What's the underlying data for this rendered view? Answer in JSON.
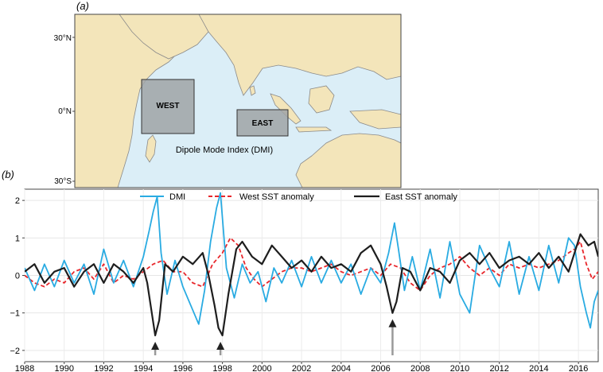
{
  "panel_a": {
    "label": "(a)",
    "lat_labels": [
      "30°N",
      "0°N",
      "30°S"
    ],
    "region_west": "WEST",
    "region_east": "EAST",
    "caption": "Dipole Mode Index (DMI)",
    "colors": {
      "ocean": "#dbeef7",
      "land": "#f3e5ba",
      "box": "#9fa3a6",
      "coast": "#7d7d7d"
    }
  },
  "panel_b": {
    "label": "(b)"
  },
  "chart_data": {
    "type": "line",
    "x_tick_labels": [
      "1988",
      "1990",
      "1992",
      "1994",
      "1996",
      "1998",
      "2000",
      "2002",
      "2004",
      "2006",
      "2008",
      "2010",
      "2012",
      "2014",
      "2016"
    ],
    "y_tick_labels": [
      "2",
      "1",
      "0",
      "−1",
      "−2"
    ],
    "xlim": [
      1988,
      2017
    ],
    "ylim": [
      -2.3,
      2.3
    ],
    "grid": true,
    "legend_position": "top",
    "series": [
      {
        "name": "DMI",
        "color": "#29abe2",
        "dash": "solid",
        "points": [
          [
            1988.0,
            0.2
          ],
          [
            1988.5,
            -0.4
          ],
          [
            1989.0,
            0.3
          ],
          [
            1989.5,
            -0.3
          ],
          [
            1990.0,
            0.4
          ],
          [
            1990.5,
            -0.2
          ],
          [
            1991.0,
            0.3
          ],
          [
            1991.5,
            -0.5
          ],
          [
            1992.0,
            0.7
          ],
          [
            1992.5,
            -0.2
          ],
          [
            1993.0,
            0.4
          ],
          [
            1993.5,
            -0.3
          ],
          [
            1994.0,
            0.5
          ],
          [
            1994.3,
            1.2
          ],
          [
            1994.5,
            1.7
          ],
          [
            1994.7,
            2.1
          ],
          [
            1994.9,
            0.6
          ],
          [
            1995.2,
            -0.5
          ],
          [
            1995.6,
            0.4
          ],
          [
            1996.0,
            -0.3
          ],
          [
            1996.4,
            -0.8
          ],
          [
            1996.8,
            -1.3
          ],
          [
            1997.1,
            -0.4
          ],
          [
            1997.4,
            0.9
          ],
          [
            1997.7,
            1.8
          ],
          [
            1997.9,
            2.2
          ],
          [
            1998.2,
            0.2
          ],
          [
            1998.6,
            -0.6
          ],
          [
            1999.0,
            0.3
          ],
          [
            1999.4,
            -0.2
          ],
          [
            1999.8,
            0.1
          ],
          [
            2000.2,
            -0.7
          ],
          [
            2000.6,
            0.2
          ],
          [
            2001.0,
            -0.2
          ],
          [
            2001.5,
            0.4
          ],
          [
            2002.0,
            -0.3
          ],
          [
            2002.5,
            0.5
          ],
          [
            2003.0,
            -0.2
          ],
          [
            2003.5,
            0.4
          ],
          [
            2004.0,
            -0.2
          ],
          [
            2004.5,
            0.3
          ],
          [
            2005.0,
            -0.5
          ],
          [
            2005.5,
            0.2
          ],
          [
            2006.0,
            -0.2
          ],
          [
            2006.4,
            0.6
          ],
          [
            2006.7,
            1.4
          ],
          [
            2006.9,
            0.7
          ],
          [
            2007.2,
            -0.4
          ],
          [
            2007.6,
            0.5
          ],
          [
            2008.0,
            -0.4
          ],
          [
            2008.5,
            0.7
          ],
          [
            2009.0,
            -0.6
          ],
          [
            2009.5,
            0.9
          ],
          [
            2010.0,
            -0.5
          ],
          [
            2010.5,
            -1.0
          ],
          [
            2011.0,
            0.8
          ],
          [
            2011.5,
            0.2
          ],
          [
            2012.0,
            -0.3
          ],
          [
            2012.5,
            0.9
          ],
          [
            2013.0,
            -0.5
          ],
          [
            2013.5,
            0.5
          ],
          [
            2014.0,
            -0.4
          ],
          [
            2014.5,
            0.8
          ],
          [
            2015.0,
            -0.2
          ],
          [
            2015.5,
            1.0
          ],
          [
            2015.8,
            0.8
          ],
          [
            2016.1,
            -0.3
          ],
          [
            2016.4,
            -1.0
          ],
          [
            2016.6,
            -1.4
          ],
          [
            2016.8,
            -0.7
          ],
          [
            2017.0,
            -0.4
          ]
        ]
      },
      {
        "name": "West SST anomaly",
        "color": "#e8262b",
        "dash": "dashed",
        "points": [
          [
            1988.0,
            0.0
          ],
          [
            1988.5,
            -0.2
          ],
          [
            1989.0,
            -0.3
          ],
          [
            1989.5,
            -0.1
          ],
          [
            1990.0,
            -0.2
          ],
          [
            1990.5,
            0.1
          ],
          [
            1991.0,
            0.2
          ],
          [
            1991.5,
            -0.1
          ],
          [
            1992.0,
            0.3
          ],
          [
            1992.5,
            -0.2
          ],
          [
            1993.0,
            0.0
          ],
          [
            1993.5,
            -0.1
          ],
          [
            1994.0,
            0.1
          ],
          [
            1994.5,
            0.3
          ],
          [
            1995.0,
            0.4
          ],
          [
            1995.5,
            0.1
          ],
          [
            1996.0,
            0.1
          ],
          [
            1996.5,
            -0.2
          ],
          [
            1997.0,
            -0.3
          ],
          [
            1997.5,
            0.3
          ],
          [
            1998.0,
            0.6
          ],
          [
            1998.4,
            1.0
          ],
          [
            1998.8,
            0.8
          ],
          [
            1999.2,
            0.2
          ],
          [
            1999.6,
            -0.1
          ],
          [
            2000.0,
            -0.3
          ],
          [
            2000.5,
            -0.1
          ],
          [
            2001.0,
            0.1
          ],
          [
            2001.5,
            0.2
          ],
          [
            2002.0,
            0.2
          ],
          [
            2002.5,
            0.1
          ],
          [
            2003.0,
            0.2
          ],
          [
            2003.5,
            0.3
          ],
          [
            2004.0,
            0.1
          ],
          [
            2004.5,
            0.0
          ],
          [
            2005.0,
            0.1
          ],
          [
            2005.5,
            0.2
          ],
          [
            2006.0,
            0.0
          ],
          [
            2006.5,
            0.3
          ],
          [
            2007.0,
            0.2
          ],
          [
            2007.5,
            -0.2
          ],
          [
            2008.0,
            -0.4
          ],
          [
            2008.5,
            0.0
          ],
          [
            2009.0,
            0.2
          ],
          [
            2009.5,
            0.3
          ],
          [
            2010.0,
            0.5
          ],
          [
            2010.5,
            0.2
          ],
          [
            2011.0,
            0.0
          ],
          [
            2011.5,
            0.2
          ],
          [
            2012.0,
            0.0
          ],
          [
            2012.5,
            0.3
          ],
          [
            2013.0,
            0.2
          ],
          [
            2013.5,
            0.3
          ],
          [
            2014.0,
            0.2
          ],
          [
            2014.5,
            0.3
          ],
          [
            2015.0,
            0.4
          ],
          [
            2015.5,
            0.6
          ],
          [
            2015.8,
            0.7
          ],
          [
            2016.1,
            0.9
          ],
          [
            2016.4,
            0.3
          ],
          [
            2016.7,
            -0.1
          ],
          [
            2017.0,
            0.1
          ]
        ]
      },
      {
        "name": "East SST anomaly",
        "color": "#1e1e1e",
        "dash": "solid",
        "points": [
          [
            1988.0,
            0.1
          ],
          [
            1988.5,
            0.3
          ],
          [
            1989.0,
            -0.2
          ],
          [
            1989.5,
            0.1
          ],
          [
            1990.0,
            0.2
          ],
          [
            1990.5,
            -0.3
          ],
          [
            1991.0,
            0.1
          ],
          [
            1991.5,
            0.3
          ],
          [
            1992.0,
            -0.2
          ],
          [
            1992.5,
            0.3
          ],
          [
            1993.0,
            0.1
          ],
          [
            1993.5,
            -0.2
          ],
          [
            1994.0,
            0.2
          ],
          [
            1994.2,
            -0.2
          ],
          [
            1994.4,
            -0.9
          ],
          [
            1994.6,
            -1.6
          ],
          [
            1994.8,
            -1.2
          ],
          [
            1995.1,
            0.3
          ],
          [
            1995.5,
            0.1
          ],
          [
            1996.0,
            0.5
          ],
          [
            1996.5,
            0.3
          ],
          [
            1997.0,
            0.6
          ],
          [
            1997.3,
            0.0
          ],
          [
            1997.6,
            -0.8
          ],
          [
            1997.8,
            -1.4
          ],
          [
            1998.0,
            -1.6
          ],
          [
            1998.3,
            -0.5
          ],
          [
            1998.7,
            0.7
          ],
          [
            1999.0,
            0.9
          ],
          [
            1999.5,
            0.5
          ],
          [
            2000.0,
            0.3
          ],
          [
            2000.5,
            0.8
          ],
          [
            2001.0,
            0.5
          ],
          [
            2001.5,
            0.2
          ],
          [
            2002.0,
            0.4
          ],
          [
            2002.5,
            0.1
          ],
          [
            2003.0,
            0.5
          ],
          [
            2003.5,
            0.2
          ],
          [
            2004.0,
            0.3
          ],
          [
            2004.5,
            0.1
          ],
          [
            2005.0,
            0.6
          ],
          [
            2005.5,
            0.8
          ],
          [
            2006.0,
            0.3
          ],
          [
            2006.3,
            -0.3
          ],
          [
            2006.6,
            -1.0
          ],
          [
            2006.8,
            -0.7
          ],
          [
            2007.1,
            0.2
          ],
          [
            2007.5,
            0.1
          ],
          [
            2008.0,
            -0.4
          ],
          [
            2008.5,
            0.2
          ],
          [
            2009.0,
            0.1
          ],
          [
            2009.5,
            -0.2
          ],
          [
            2010.0,
            0.4
          ],
          [
            2010.5,
            0.6
          ],
          [
            2011.0,
            0.3
          ],
          [
            2011.5,
            0.6
          ],
          [
            2012.0,
            0.2
          ],
          [
            2012.5,
            0.4
          ],
          [
            2013.0,
            0.5
          ],
          [
            2013.5,
            0.3
          ],
          [
            2014.0,
            0.6
          ],
          [
            2014.5,
            0.2
          ],
          [
            2015.0,
            0.5
          ],
          [
            2015.5,
            0.1
          ],
          [
            2015.8,
            0.6
          ],
          [
            2016.1,
            1.1
          ],
          [
            2016.5,
            0.8
          ],
          [
            2016.8,
            0.9
          ],
          [
            2017.0,
            0.5
          ]
        ]
      }
    ],
    "annotations": [
      {
        "type": "arrow",
        "x": 1994.6,
        "y": -1.6,
        "color": "#222222"
      },
      {
        "type": "arrow",
        "x": 1997.9,
        "y": -1.6,
        "color": "#222222"
      },
      {
        "type": "arrow",
        "x": 2006.6,
        "y": -1.0,
        "color": "#222222"
      }
    ]
  }
}
